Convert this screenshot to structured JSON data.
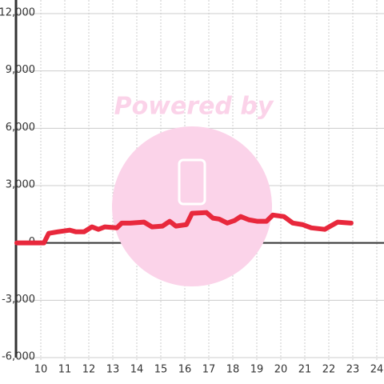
{
  "chart_data": {
    "type": "line",
    "watermark": "Powered by",
    "x": [
      9,
      10.13,
      10.33,
      10.7,
      11.2,
      11.47,
      11.8,
      12.13,
      12.4,
      12.67,
      13.17,
      13.37,
      13.73,
      14.3,
      14.63,
      15.07,
      15.37,
      15.63,
      16.07,
      16.3,
      16.9,
      17.17,
      17.43,
      17.77,
      18.07,
      18.33,
      18.67,
      19.03,
      19.4,
      19.67,
      20.13,
      20.5,
      20.9,
      21.27,
      21.83,
      22.07,
      22.37,
      22.93
    ],
    "series": [
      {
        "color": "#e8283c",
        "values": [
          0,
          0,
          500,
          580,
          670,
          580,
          580,
          840,
          710,
          840,
          790,
          1040,
          1040,
          1090,
          840,
          880,
          1130,
          880,
          960,
          1550,
          1590,
          1300,
          1250,
          1040,
          1170,
          1380,
          1210,
          1130,
          1130,
          1460,
          1380,
          1040,
          960,
          790,
          710,
          880,
          1090,
          1040
        ]
      }
    ],
    "xlim": [
      9,
      24.3
    ],
    "xticks": [
      10,
      11,
      12,
      13,
      14,
      15,
      16,
      17,
      18,
      19,
      20,
      21,
      22,
      23,
      24
    ],
    "ylim": [
      -6000,
      12000
    ],
    "yticks": [
      {
        "value": -6000,
        "label": "-6,000"
      },
      {
        "value": -3000,
        "label": "-3,000"
      },
      0,
      {
        "value": 3000,
        "label": "3,000"
      },
      {
        "value": 6000,
        "label": "6,000"
      },
      {
        "value": 9000,
        "label": "9,000"
      },
      {
        "value": 12000,
        "label": "12,000"
      }
    ],
    "grid": true
  }
}
